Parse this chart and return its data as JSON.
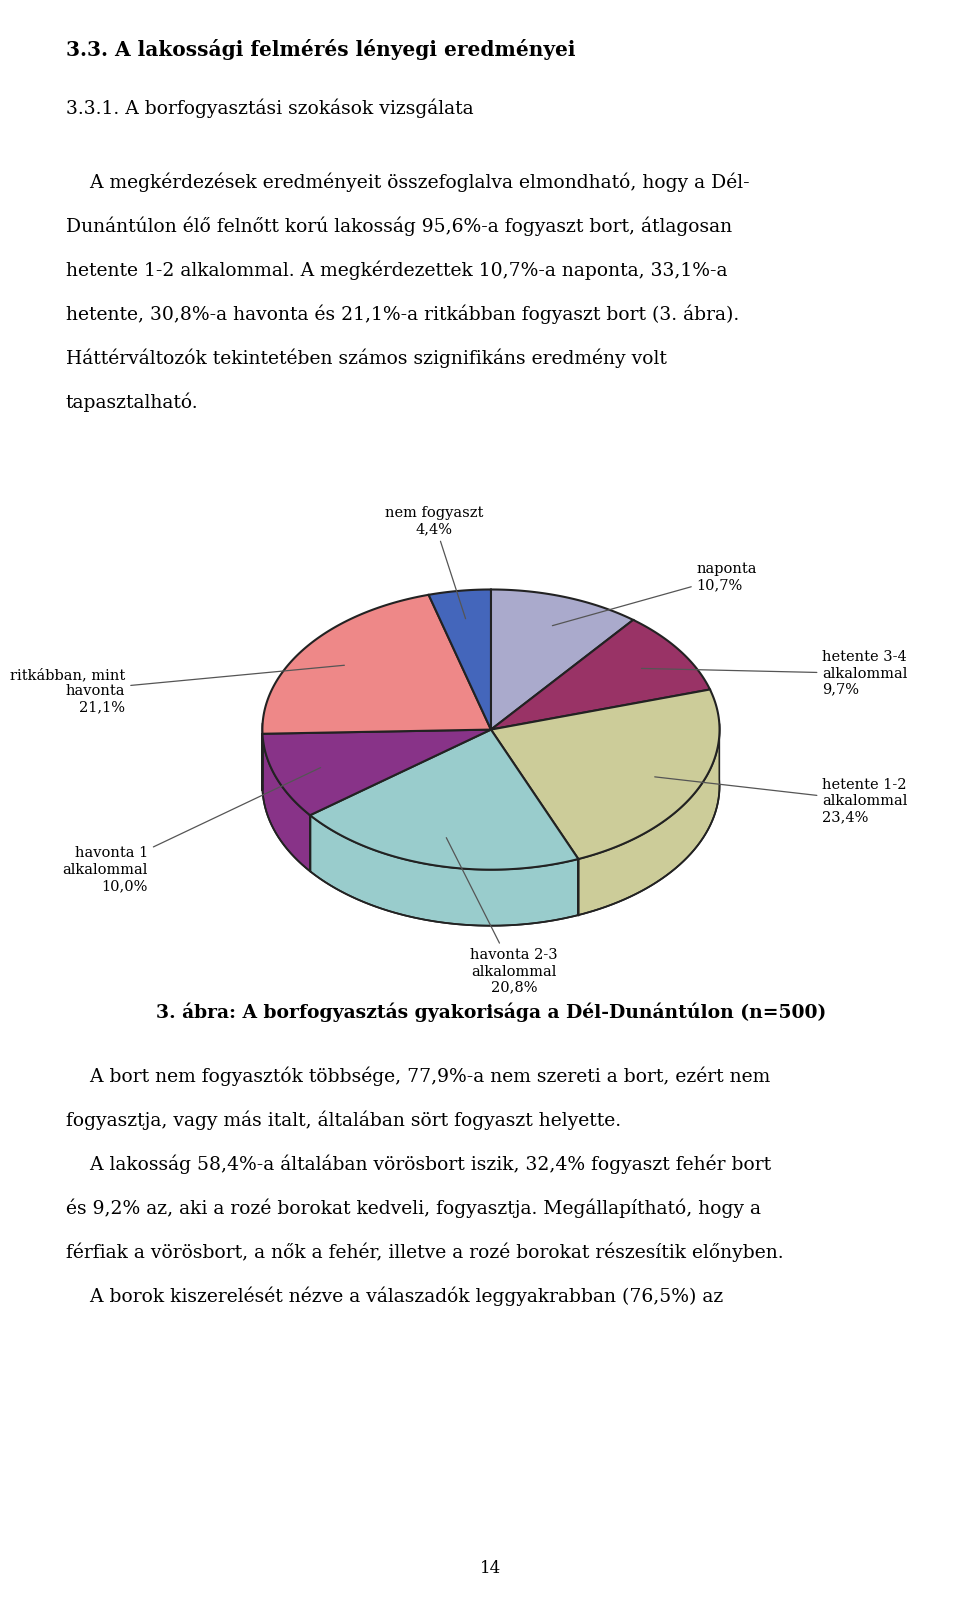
{
  "heading": "3.3. A lakossági felmérés lényegi eredményei",
  "subheading": "3.3.1. A borfogyasztási szokások vizsgálata",
  "para1_lines": [
    "    A megkérdezések eredményeit összefoglalva elmondható, hogy a Dél-",
    "Dunántúlon élő felnőtt korú lakosság 95,6%-a fogyaszt bort, átlagosan",
    "hetente 1-2 alkalommal. A megkérdezettek 10,7%-a naponta, 33,1%-a",
    "hetente, 30,8%-a havonta és 21,1%-a ritkábban fogyaszt bort (3. ábra).",
    "Háttérváltozók tekintetében számos szignifikáns eredmény volt",
    "tapasztalható."
  ],
  "pie_slices": [
    {
      "label": "naponta\n10,7%",
      "value": 10.7,
      "color": "#aaaacc"
    },
    {
      "label": "hetente 3-4\nalkalommal\n9,7%",
      "value": 9.7,
      "color": "#993366"
    },
    {
      "label": "hetente 1-2\nalkalommal\n23,4%",
      "value": 23.4,
      "color": "#cccc99"
    },
    {
      "label": "havonta 2-3\nalkalommal\n20,8%",
      "value": 20.8,
      "color": "#99cccc"
    },
    {
      "label": "havonta 1\nalkalommal\n10,0%",
      "value": 10.0,
      "color": "#883388"
    },
    {
      "label": "ritkábban, mint\nhavonta\n21,1%",
      "value": 21.1,
      "color": "#ee8888"
    },
    {
      "label": "nem fogyaszt\n4,4%",
      "value": 4.4,
      "color": "#4466bb"
    }
  ],
  "caption": "3. ábra: A borfogyasztás gyakorisága a Dél-Dunántúlon (n=500)",
  "para2_lines": [
    "    A bort nem fogyasztók többsége, 77,9%-a nem szereti a bort, ezért nem",
    "fogyasztja, vagy más italt, általában sört fogyaszt helyette.",
    "    A lakosság 58,4%-a általában vörösbort iszik, 32,4% fogyaszt fehér bort",
    "és 9,2% az, aki a rozé borokat kedveli, fogyasztja. Megállapítható, hogy a",
    "férfiak a vörösbort, a nők a fehér, illetve a rozé borokat részesítik előnyben.",
    "    A borok kiszerelését nézve a válaszadók leggyakrabban (76,5%) az"
  ],
  "page_number": "14",
  "bg_color": "#ffffff",
  "fg_color": "#000000"
}
